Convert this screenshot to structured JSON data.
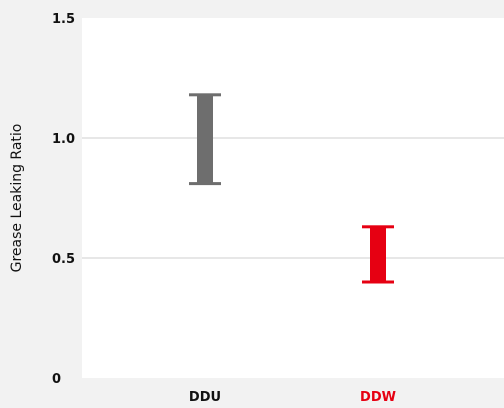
{
  "chart_data": {
    "type": "range-bar",
    "ylabel": "Grease Leaking Ratio",
    "ylim": [
      0,
      1.5
    ],
    "yticks": [
      {
        "value": 0,
        "label": "0"
      },
      {
        "value": 0.5,
        "label": "0.5"
      },
      {
        "value": 1.0,
        "label": "1.0"
      },
      {
        "value": 1.5,
        "label": "1.5"
      }
    ],
    "grid": true,
    "categories": [
      {
        "label": "DDU",
        "low": 0.81,
        "high": 1.18,
        "color": "#6e6e6e",
        "label_color": "#111111"
      },
      {
        "label": "DDW",
        "low": 0.4,
        "high": 0.63,
        "color": "#e60012",
        "label_color": "#e60012"
      }
    ]
  }
}
